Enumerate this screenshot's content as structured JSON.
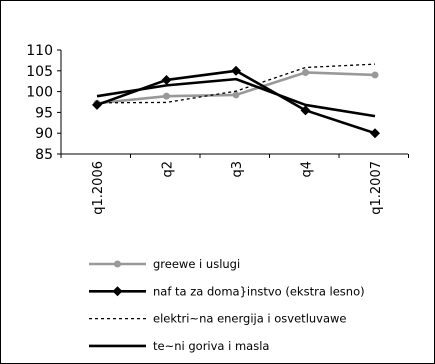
{
  "chart_data": {
    "type": "line",
    "categories": [
      "q1.2006",
      "q2",
      "q3",
      "q4",
      "q1.2007"
    ],
    "ylim": [
      85,
      110
    ],
    "yticks": [
      85,
      90,
      95,
      100,
      105,
      110
    ],
    "grid": false,
    "legend_position": "bottom",
    "series": [
      {
        "name": "greewe i uslugi",
        "values": [
          97.2,
          98.9,
          99.2,
          104.6,
          104.0
        ],
        "color": "#999999",
        "style": "solid",
        "marker": "circle"
      },
      {
        "name": "naf ta za doma}instvo (ekstra lesno)",
        "values": [
          96.8,
          102.8,
          105.0,
          95.5,
          90.0
        ],
        "color": "#000000",
        "style": "solid",
        "marker": "diamond"
      },
      {
        "name": "elektri~na energija i osvetluvawe",
        "values": [
          97.3,
          97.4,
          100.1,
          105.8,
          106.6
        ],
        "color": "#000000",
        "style": "dotted",
        "marker": "none"
      },
      {
        "name": "te~ni goriva i masla",
        "values": [
          98.9,
          101.5,
          103.0,
          96.8,
          94.1
        ],
        "color": "#000000",
        "style": "solid",
        "marker": "none"
      }
    ]
  }
}
